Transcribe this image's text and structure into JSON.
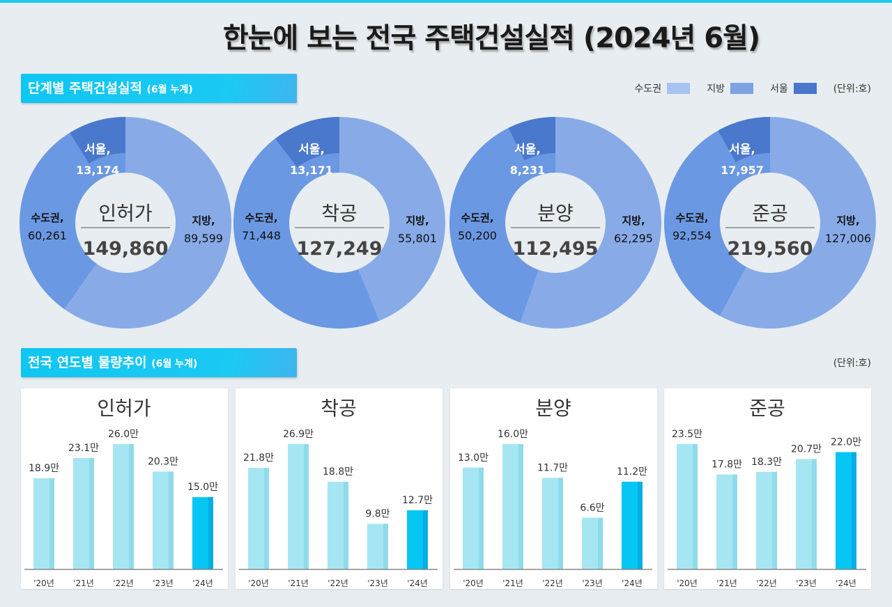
{
  "title": "한눈에 보는 전국 주택건설실적  (2024년 6월)",
  "section1": {
    "label": "단계별 주택건설실적",
    "sub": "(6월 누계)"
  },
  "section2": {
    "label": "전국 연도별 물량추이",
    "sub": "(6월 누계)"
  },
  "legend": {
    "items": [
      {
        "label": "수도권",
        "color": "#a7c3ef"
      },
      {
        "label": "지방",
        "color": "#7ea2e3"
      },
      {
        "label": "서울",
        "color": "#4a76cc"
      }
    ],
    "unit": "(단위:호)"
  },
  "unit2": "(단위:호)",
  "chart_data": [
    {
      "type": "pie",
      "charts": [
        {
          "title": "인허가",
          "total": "149,860",
          "slices": [
            {
              "name": "지방",
              "value": 89599,
              "label": "89,599"
            },
            {
              "name": "수도권",
              "value": 60261,
              "label": "60,261"
            },
            {
              "name": "서울",
              "value": 13174,
              "label": "13,174"
            }
          ]
        },
        {
          "title": "착공",
          "total": "127,249",
          "slices": [
            {
              "name": "지방",
              "value": 55801,
              "label": "55,801"
            },
            {
              "name": "수도권",
              "value": 71448,
              "label": "71,448"
            },
            {
              "name": "서울",
              "value": 13171,
              "label": "13,171"
            }
          ]
        },
        {
          "title": "분양",
          "total": "112,495",
          "slices": [
            {
              "name": "지방",
              "value": 62295,
              "label": "62,295"
            },
            {
              "name": "수도권",
              "value": 50200,
              "label": "50,200"
            },
            {
              "name": "서울",
              "value": 8231,
              "label": "8,231"
            }
          ]
        },
        {
          "title": "준공",
          "total": "219,560",
          "slices": [
            {
              "name": "지방",
              "value": 127006,
              "label": "127,006"
            },
            {
              "name": "수도권",
              "value": 92554,
              "label": "92,554"
            },
            {
              "name": "서울",
              "value": 17957,
              "label": "17,957"
            }
          ]
        }
      ],
      "colors": {
        "지방": "#88abe8",
        "수도권": "#6b98e2",
        "서울": "#4a78cc"
      }
    },
    {
      "type": "bar",
      "categories": [
        "'20년",
        "'21년",
        "'22년",
        "'23년",
        "'24년"
      ],
      "unit_suffix": "만",
      "colors": {
        "past": "#a6e6f2",
        "current": "#06c6f3"
      },
      "panels": [
        {
          "title": "인허가",
          "values": [
            18.9,
            23.1,
            26.0,
            20.3,
            15.0
          ]
        },
        {
          "title": "착공",
          "values": [
            21.8,
            26.9,
            18.8,
            9.8,
            12.7
          ]
        },
        {
          "title": "분양",
          "values": [
            13.0,
            16.0,
            11.7,
            6.6,
            11.2
          ]
        },
        {
          "title": "준공",
          "values": [
            23.5,
            17.8,
            18.3,
            20.7,
            22.0
          ]
        }
      ]
    }
  ]
}
